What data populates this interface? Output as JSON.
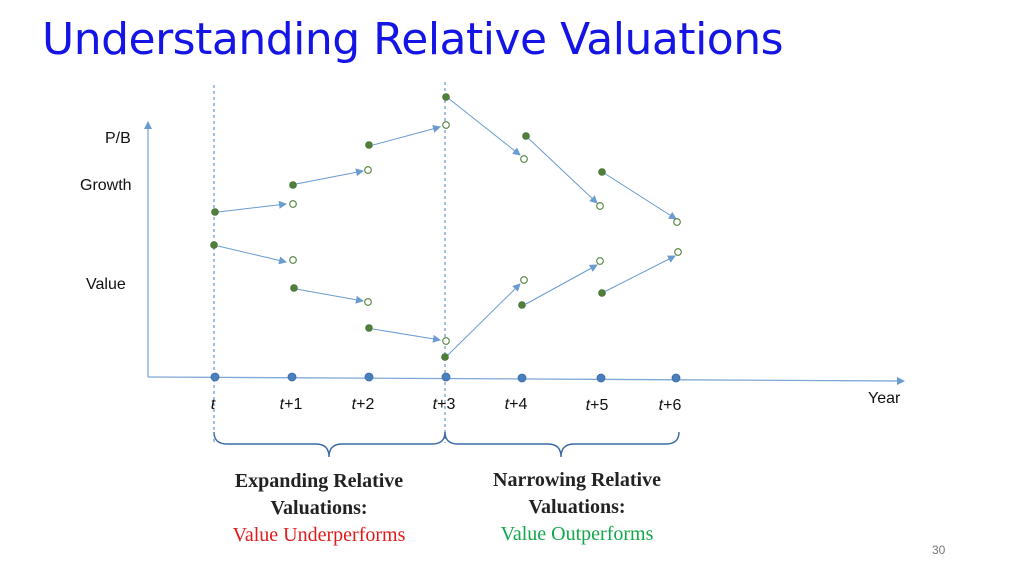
{
  "title": "Understanding Relative Valuations",
  "y_labels": {
    "pb": "P/B",
    "growth": "Growth",
    "value": "Value"
  },
  "x_label": "Year",
  "ticks": [
    {
      "italic": "t",
      "suffix": ""
    },
    {
      "italic": "t",
      "suffix": "+1"
    },
    {
      "italic": "t",
      "suffix": "+2"
    },
    {
      "italic": "t",
      "suffix": "+3"
    },
    {
      "italic": "t",
      "suffix": "+4"
    },
    {
      "italic": "t",
      "suffix": "+5"
    },
    {
      "italic": "t",
      "suffix": "+6"
    }
  ],
  "left_caption": {
    "heading": "Expanding Relative Valuations:",
    "sub": "Value Underperforms",
    "sub_color": "#e01b1b"
  },
  "right_caption": {
    "heading": "Narrowing Relative Valuations:",
    "sub": "Value Outperforms",
    "sub_color": "#12a84a"
  },
  "page_number": "30",
  "colors": {
    "title": "#1414e6",
    "axis": "#7fa8d6",
    "dot_fill": "#4f7f3a",
    "tick_dot": "#4a7fbf"
  }
}
